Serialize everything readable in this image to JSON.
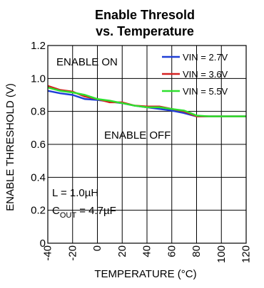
{
  "chart_data": {
    "type": "line",
    "title_line1": "Enable Thresold",
    "title_line2": "vs. Temperature",
    "xlabel": "TEMPERATURE (°C)",
    "ylabel": "ENABLE THRESHOLD (V)",
    "xlim": [
      -40,
      120
    ],
    "ylim": [
      0,
      1.2
    ],
    "xticks": [
      -40,
      -20,
      0,
      20,
      40,
      60,
      80,
      100,
      120
    ],
    "yticks": [
      0,
      0.2,
      0.4,
      0.6,
      0.8,
      1.0,
      1.2
    ],
    "ytick_labels": [
      "0",
      "0.2",
      "0.4",
      "0.6",
      "0.8",
      "1.0",
      "1.2"
    ],
    "grid": true,
    "legend_position": "top-right",
    "annotations": {
      "enable_on": "ENABLE ON",
      "enable_off": "ENABLE OFF",
      "inductance": "L = 1.0µH",
      "cout_main": "C",
      "cout_sub": "OUT",
      "cout_value": " = 4.7µF"
    },
    "series": [
      {
        "name": "VIN = 2.7V",
        "color": "#1f3fd6",
        "x": [
          -40,
          -30,
          -20,
          -10,
          0,
          10,
          20,
          30,
          40,
          50,
          60,
          70,
          80,
          90,
          100,
          110,
          120
        ],
        "y": [
          0.925,
          0.91,
          0.9,
          0.875,
          0.87,
          0.86,
          0.85,
          0.835,
          0.825,
          0.815,
          0.805,
          0.79,
          0.77,
          0.77,
          0.77,
          0.77,
          0.77
        ]
      },
      {
        "name": "VIN = 3.6V",
        "color": "#d42020",
        "x": [
          -40,
          -30,
          -20,
          -10,
          0,
          10,
          20,
          30,
          40,
          50,
          60,
          70,
          80,
          90,
          100,
          110,
          120
        ],
        "y": [
          0.955,
          0.93,
          0.92,
          0.89,
          0.875,
          0.855,
          0.855,
          0.835,
          0.83,
          0.83,
          0.815,
          0.8,
          0.77,
          0.77,
          0.77,
          0.77,
          0.77
        ]
      },
      {
        "name": "VIN = 5.5V",
        "color": "#2ee02e",
        "x": [
          -40,
          -30,
          -20,
          -10,
          0,
          10,
          20,
          30,
          40,
          50,
          60,
          70,
          80,
          90,
          100,
          110,
          120
        ],
        "y": [
          0.945,
          0.925,
          0.915,
          0.9,
          0.875,
          0.865,
          0.85,
          0.835,
          0.825,
          0.825,
          0.815,
          0.805,
          0.775,
          0.77,
          0.77,
          0.77,
          0.77
        ]
      }
    ]
  }
}
